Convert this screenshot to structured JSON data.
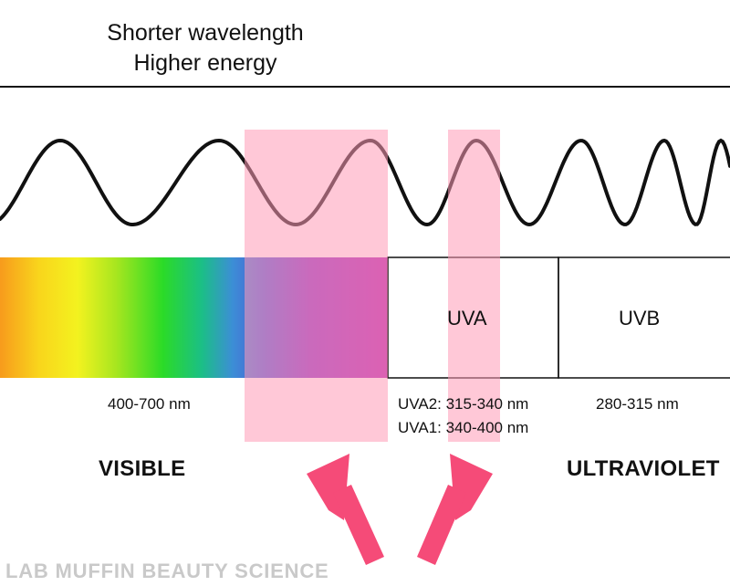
{
  "header": {
    "line1": "Shorter wavelength",
    "line2": "Higher energy"
  },
  "regions": [
    {
      "label": "UVA"
    },
    {
      "label": "UVB"
    }
  ],
  "ranges": {
    "visible": "400-700 nm",
    "uva2": "UVA2: 315-340 nm",
    "uva1": "UVA1: 340-400 nm",
    "uvb": "280-315 nm"
  },
  "headings": {
    "visible": "VISIBLE",
    "ultraviolet": "ULTRAVIOLET"
  },
  "watermark": "LAB MUFFIN BEAUTY SCIENCE",
  "colors": {
    "highlight": "#ffc7d6",
    "arrow": "#f54b78",
    "wave": "#111111",
    "watermark": "#c9c9c9"
  },
  "icons": [
    "up-arrow-icon",
    "up-arrow-icon"
  ]
}
